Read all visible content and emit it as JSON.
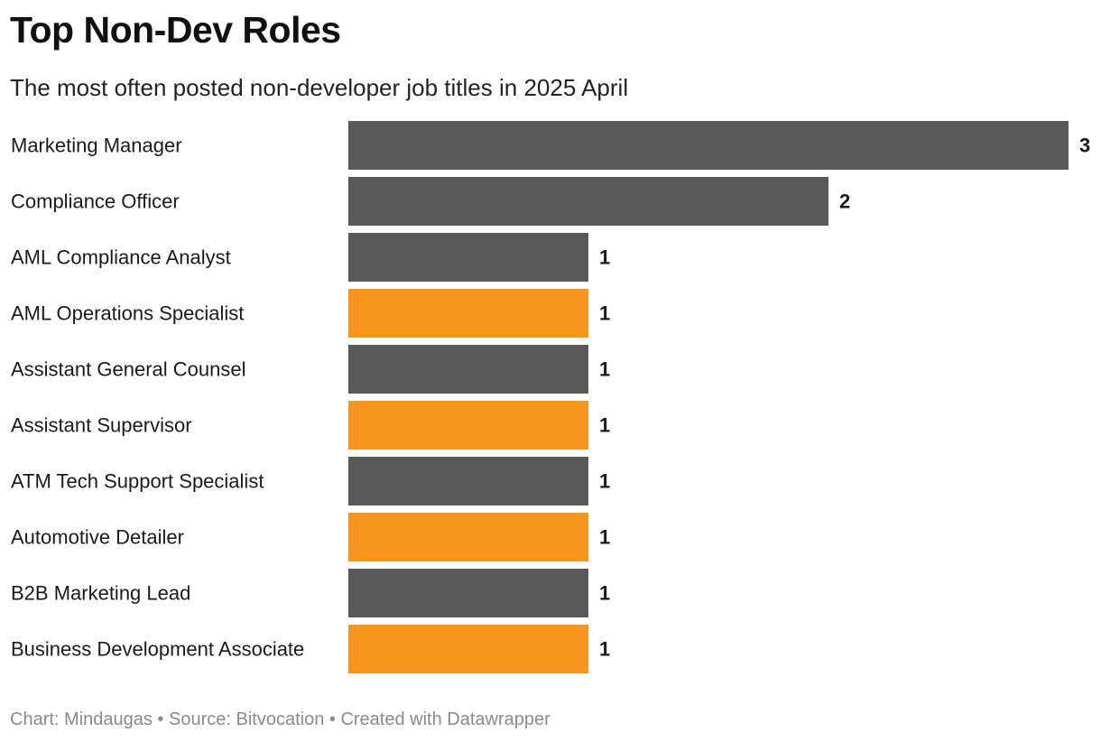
{
  "header": {
    "title": "Top Non-Dev Roles",
    "subtitle": "The most often posted non-developer job titles in 2025 April"
  },
  "footer": {
    "credit_prefix": "Chart: ",
    "credit_author": "Mindaugas",
    "separator": " • ",
    "source_prefix": "Source: ",
    "source_name": "Bitvocation",
    "created_with": "Created with Datawrapper"
  },
  "colors": {
    "dark": "#595959",
    "accent": "#f7941d"
  },
  "chart_data": {
    "type": "bar",
    "orientation": "horizontal",
    "categories": [
      "Marketing Manager",
      "Compliance Officer",
      "AML Compliance Analyst",
      "AML Operations Specialist",
      "Assistant General Counsel",
      "Assistant Supervisor",
      "ATM Tech Support Specialist",
      "Automotive Detailer",
      "B2B Marketing Lead",
      "Business Development Associate"
    ],
    "values": [
      3,
      2,
      1,
      1,
      1,
      1,
      1,
      1,
      1,
      1
    ],
    "bar_colors": [
      "dark",
      "dark",
      "dark",
      "accent",
      "dark",
      "accent",
      "dark",
      "accent",
      "dark",
      "accent"
    ],
    "xlim": [
      0,
      3
    ],
    "grid": false,
    "data_labels": true,
    "legend": "none"
  }
}
